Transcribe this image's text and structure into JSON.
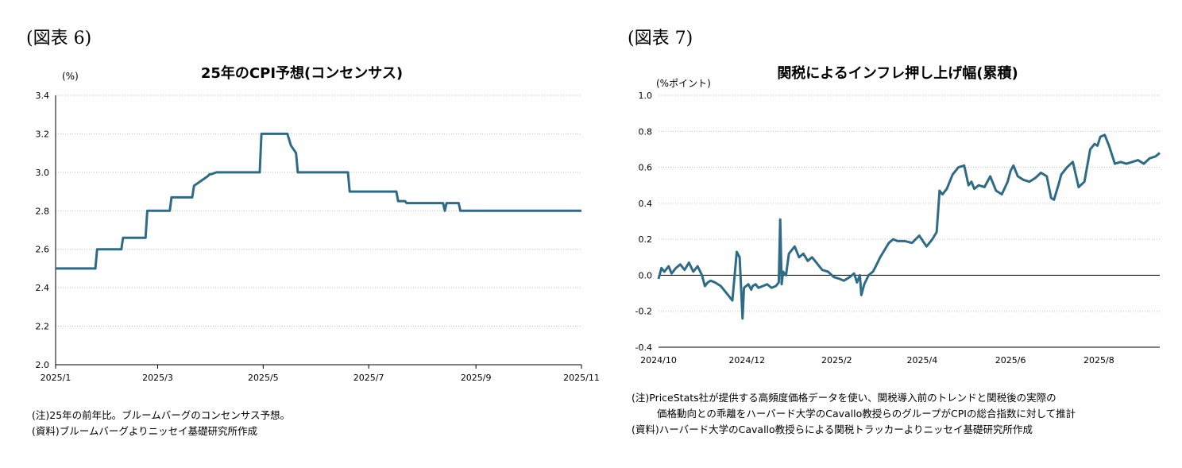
{
  "left": {
    "figure_label": "(図表 6)",
    "notes": [
      "(注)25年の前年比。ブルームバーグのコンセンサス予想。",
      "(資料)ブルームバーグよりニッセイ基礎研究所作成"
    ]
  },
  "right": {
    "figure_label": "(図表 7)",
    "notes": [
      "(注)PriceStats社が提供する高頻度価格データを使い、関税導入前のトレンドと関税後の実際の",
      "価格動向との乖離をハーバード大学のCavallo教授らのグループがCPIの総合指数に対して推計",
      "(資料)ハーバード大学のCavallo教授らによる関税トラッカーよりニッセイ基礎研究所作成"
    ]
  },
  "colors": {
    "line": "#2e6b86",
    "grid": "#bfbfbf"
  },
  "chart_data": [
    {
      "type": "line",
      "title": "25年のCPI予想(コンセンサス)",
      "ylabel": "(%)",
      "xlabel": "",
      "ylim": [
        2.0,
        3.4
      ],
      "yticks": [
        2.0,
        2.2,
        2.4,
        2.6,
        2.8,
        3.0,
        3.2,
        3.4
      ],
      "ytick_labels": [
        "2.0",
        "2.2",
        "2.4",
        "2.6",
        "2.8",
        "3.0",
        "3.2",
        "3.4"
      ],
      "xlim": [
        "2025-01-01",
        "2025-11-01"
      ],
      "xticks": [
        "2025-01-01",
        "2025-03-01",
        "2025-05-01",
        "2025-07-01",
        "2025-09-01",
        "2025-11-01"
      ],
      "xtick_labels": [
        "2025/1",
        "2025/3",
        "2025/5",
        "2025/7",
        "2025/9",
        "2025/11"
      ],
      "grid": true,
      "series": [
        {
          "x": [
            "2025-01-01",
            "2025-01-24",
            "2025-01-25",
            "2025-02-08",
            "2025-02-09",
            "2025-02-22",
            "2025-02-23",
            "2025-03-08",
            "2025-03-09",
            "2025-03-21",
            "2025-03-22",
            "2025-03-30",
            "2025-03-31",
            "2025-04-01",
            "2025-04-04",
            "2025-04-05",
            "2025-04-29",
            "2025-04-30",
            "2025-05-15",
            "2025-05-17",
            "2025-05-20",
            "2025-05-21",
            "2025-06-19",
            "2025-06-20",
            "2025-07-17",
            "2025-07-18",
            "2025-07-22",
            "2025-07-23",
            "2025-08-13",
            "2025-08-14",
            "2025-08-15",
            "2025-08-16",
            "2025-08-22",
            "2025-08-23",
            "2025-11-01"
          ],
          "y": [
            2.5,
            2.5,
            2.6,
            2.6,
            2.66,
            2.66,
            2.8,
            2.8,
            2.87,
            2.87,
            2.93,
            2.98,
            2.99,
            2.99,
            3.0,
            3.0,
            3.0,
            3.2,
            3.2,
            3.14,
            3.1,
            3.0,
            3.0,
            2.9,
            2.9,
            2.85,
            2.85,
            2.84,
            2.84,
            2.8,
            2.84,
            2.84,
            2.84,
            2.8,
            2.8
          ]
        }
      ]
    },
    {
      "type": "line",
      "title": "関税によるインフレ押し上げ幅(累積)",
      "ylabel": "(%ポイント)",
      "xlabel": "",
      "ylim": [
        -0.4,
        1.0
      ],
      "yticks": [
        -0.4,
        -0.2,
        0.0,
        0.2,
        0.4,
        0.6,
        0.8,
        1.0
      ],
      "ytick_labels": [
        "-0.4",
        "-0.2",
        "0.0",
        "0.2",
        "0.4",
        "0.6",
        "0.8",
        "1.0"
      ],
      "xlim": [
        "2024-10-01",
        "2025-09-12"
      ],
      "xticks": [
        "2024-10-01",
        "2024-12-01",
        "2025-02-01",
        "2025-04-01",
        "2025-06-01",
        "2025-08-01"
      ],
      "xtick_labels": [
        "2024/10",
        "2024/12",
        "2025/2",
        "2025/4",
        "2025/6",
        "2025/8"
      ],
      "grid": true,
      "series": [
        {
          "x": [
            "2024-10-01",
            "2024-10-03",
            "2024-10-05",
            "2024-10-08",
            "2024-10-10",
            "2024-10-13",
            "2024-10-16",
            "2024-10-19",
            "2024-10-22",
            "2024-10-25",
            "2024-10-28",
            "2024-10-31",
            "2024-11-02",
            "2024-11-04",
            "2024-11-06",
            "2024-11-09",
            "2024-11-13",
            "2024-11-17",
            "2024-11-21",
            "2024-11-24",
            "2024-11-26",
            "2024-11-28",
            "2024-11-29",
            "2024-12-02",
            "2024-12-04",
            "2024-12-05",
            "2024-12-07",
            "2024-12-09",
            "2024-12-12",
            "2024-12-15",
            "2024-12-18",
            "2024-12-21",
            "2024-12-23",
            "2024-12-24",
            "2024-12-25",
            "2024-12-26",
            "2024-12-28",
            "2024-12-30",
            "2025-01-01",
            "2025-01-03",
            "2025-01-06",
            "2025-01-09",
            "2025-01-12",
            "2025-01-15",
            "2025-01-18",
            "2025-01-22",
            "2025-01-26",
            "2025-01-30",
            "2025-02-03",
            "2025-02-06",
            "2025-02-10",
            "2025-02-13",
            "2025-02-15",
            "2025-02-17",
            "2025-02-18",
            "2025-02-20",
            "2025-02-23",
            "2025-02-26",
            "2025-02-28",
            "2025-03-03",
            "2025-03-06",
            "2025-03-09",
            "2025-03-12",
            "2025-03-15",
            "2025-03-20",
            "2025-03-25",
            "2025-03-30",
            "2025-04-04",
            "2025-04-08",
            "2025-04-11",
            "2025-04-13",
            "2025-04-15",
            "2025-04-18",
            "2025-04-22",
            "2025-04-26",
            "2025-04-30",
            "2025-05-03",
            "2025-05-05",
            "2025-05-07",
            "2025-05-10",
            "2025-05-14",
            "2025-05-18",
            "2025-05-22",
            "2025-05-26",
            "2025-05-30",
            "2025-06-01",
            "2025-06-03",
            "2025-06-06",
            "2025-06-10",
            "2025-06-14",
            "2025-06-18",
            "2025-06-22",
            "2025-06-26",
            "2025-06-29",
            "2025-07-01",
            "2025-07-04",
            "2025-07-06",
            "2025-07-10",
            "2025-07-14",
            "2025-07-18",
            "2025-07-22",
            "2025-07-26",
            "2025-07-29",
            "2025-07-31",
            "2025-08-02",
            "2025-08-05",
            "2025-08-08",
            "2025-08-12",
            "2025-08-16",
            "2025-08-20",
            "2025-08-24",
            "2025-08-28",
            "2025-09-01",
            "2025-09-05",
            "2025-09-09",
            "2025-09-12"
          ],
          "y": [
            -0.02,
            0.04,
            0.02,
            0.05,
            0.01,
            0.04,
            0.06,
            0.03,
            0.07,
            0.02,
            0.05,
            0.0,
            -0.06,
            -0.04,
            -0.03,
            -0.04,
            -0.06,
            -0.1,
            -0.14,
            0.13,
            0.1,
            -0.24,
            -0.07,
            -0.05,
            -0.08,
            -0.06,
            -0.05,
            -0.07,
            -0.06,
            -0.05,
            -0.07,
            -0.06,
            -0.04,
            0.31,
            -0.05,
            0.02,
            0.0,
            0.12,
            0.14,
            0.16,
            0.1,
            0.12,
            0.08,
            0.1,
            0.07,
            0.03,
            0.02,
            -0.01,
            -0.02,
            -0.03,
            -0.01,
            0.01,
            -0.04,
            0.0,
            -0.11,
            -0.05,
            0.0,
            0.02,
            0.05,
            0.1,
            0.14,
            0.18,
            0.2,
            0.19,
            0.19,
            0.18,
            0.22,
            0.16,
            0.2,
            0.24,
            0.47,
            0.45,
            0.48,
            0.56,
            0.6,
            0.61,
            0.5,
            0.52,
            0.48,
            0.5,
            0.49,
            0.55,
            0.47,
            0.45,
            0.52,
            0.58,
            0.61,
            0.55,
            0.53,
            0.52,
            0.54,
            0.57,
            0.55,
            0.43,
            0.42,
            0.5,
            0.56,
            0.6,
            0.63,
            0.49,
            0.52,
            0.7,
            0.73,
            0.72,
            0.77,
            0.78,
            0.72,
            0.62,
            0.63,
            0.62,
            0.63,
            0.64,
            0.62,
            0.65,
            0.66,
            0.68
          ]
        }
      ]
    }
  ]
}
